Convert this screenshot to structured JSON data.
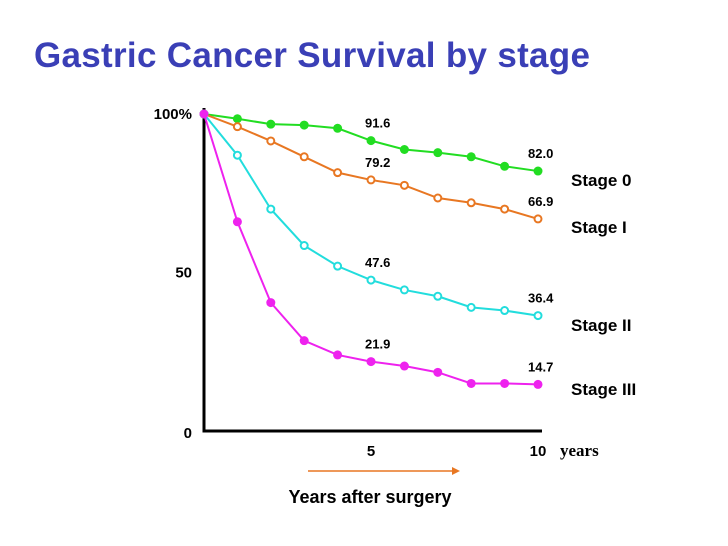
{
  "title": "Gastric Cancer Survival by stage",
  "chart_data": {
    "type": "line",
    "title": "Gastric Cancer Survival by stage",
    "xlabel": "Years after surgery",
    "x_unit": "years",
    "ylabel": "",
    "xlim": [
      0,
      10
    ],
    "ylim": [
      0,
      100
    ],
    "x_ticks": [
      {
        "value": 5,
        "label": "5"
      },
      {
        "value": 10,
        "label": "10"
      }
    ],
    "y_ticks": [
      {
        "value": 0,
        "label": "0"
      },
      {
        "value": 50,
        "label": "50"
      },
      {
        "value": 100,
        "label": "100%"
      }
    ],
    "x": [
      0,
      1,
      2,
      3,
      4,
      5,
      6,
      7,
      8,
      9,
      10
    ],
    "series": [
      {
        "name": "Stage 0",
        "color": "#22dd22",
        "marker": "filled",
        "values": [
          100,
          98.5,
          96.8,
          96.5,
          95.5,
          91.6,
          88.8,
          87.8,
          86.5,
          83.5,
          82.0
        ]
      },
      {
        "name": "Stage I",
        "color": "#e87722",
        "marker": "hollow",
        "values": [
          100,
          96.0,
          91.5,
          86.5,
          81.5,
          79.2,
          77.5,
          73.5,
          72.0,
          70.0,
          66.9
        ]
      },
      {
        "name": "Stage II",
        "color": "#22dddd",
        "marker": "hollow",
        "values": [
          100,
          87.0,
          70.0,
          58.5,
          52.0,
          47.6,
          44.5,
          42.5,
          39.0,
          38.0,
          36.4
        ]
      },
      {
        "name": "Stage III",
        "color": "#ee22ee",
        "marker": "filled",
        "values": [
          100,
          66.0,
          40.5,
          28.5,
          24.0,
          21.9,
          20.5,
          18.5,
          15.0,
          15.0,
          14.7
        ]
      }
    ],
    "annotations": [
      {
        "series": "Stage 0",
        "x": 5,
        "text": "91.6"
      },
      {
        "series": "Stage I",
        "x": 5,
        "text": "79.2"
      },
      {
        "series": "Stage II",
        "x": 5,
        "text": "47.6"
      },
      {
        "series": "Stage III",
        "x": 5,
        "text": "21.9"
      },
      {
        "series": "Stage 0",
        "x": 10,
        "text": "82.0"
      },
      {
        "series": "Stage I",
        "x": 10,
        "text": "66.9"
      },
      {
        "series": "Stage II",
        "x": 10,
        "text": "36.4"
      },
      {
        "series": "Stage III",
        "x": 10,
        "text": "14.7"
      }
    ],
    "legend": [
      "Stage 0",
      "Stage I",
      "Stage II",
      "Stage III"
    ],
    "xlabel_arrow_color": "#e87722"
  }
}
